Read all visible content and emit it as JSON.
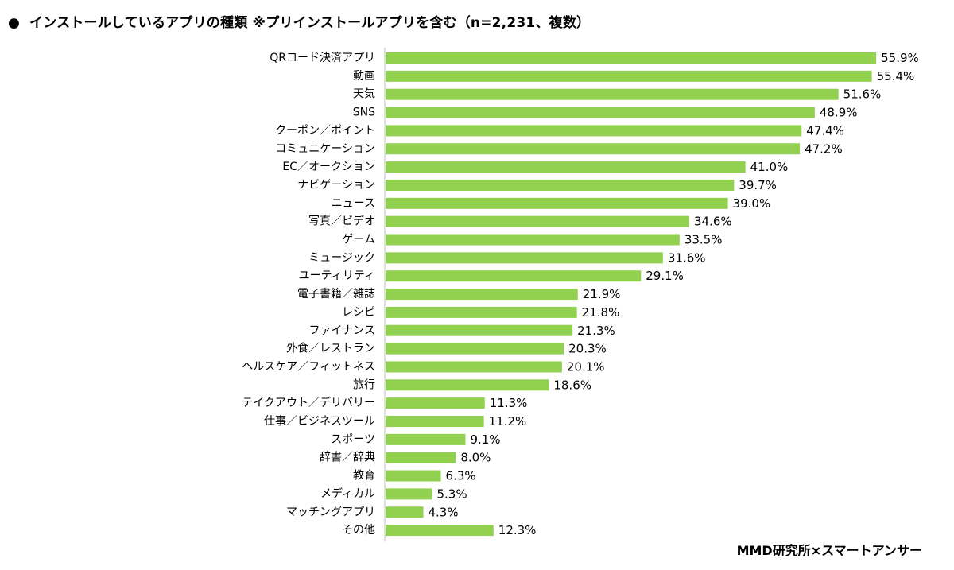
{
  "title": {
    "bullet": "●",
    "text": "インストールしているアプリの種類 ※プリインストールアプリを含む（n=2,231、複数）"
  },
  "source": "MMD研究所×スマートアンサー",
  "colors": {
    "bar": "#92d050",
    "axis": "#bfbfbf"
  },
  "chart_data": {
    "type": "bar",
    "orientation": "horizontal",
    "title": "インストールしているアプリの種類 ※プリインストールアプリを含む（n=2,231、複数）",
    "unit": "%",
    "xlim": [
      0,
      60
    ],
    "grid": false,
    "legend": "none",
    "categories": [
      "QRコード決済アプリ",
      "動画",
      "天気",
      "SNS",
      "クーポン／ポイント",
      "コミュニケーション",
      "EC／オークション",
      "ナビゲーション",
      "ニュース",
      "写真／ビデオ",
      "ゲーム",
      "ミュージック",
      "ユーティリティ",
      "電子書籍／雑誌",
      "レシピ",
      "ファイナンス",
      "外食／レストラン",
      "ヘルスケア／フィットネス",
      "旅行",
      "テイクアウト／デリバリー",
      "仕事／ビジネスツール",
      "スポーツ",
      "辞書／辞典",
      "教育",
      "メディカル",
      "マッチングアプリ",
      "その他"
    ],
    "values": [
      55.9,
      55.4,
      51.6,
      48.9,
      47.4,
      47.2,
      41.0,
      39.7,
      39.0,
      34.6,
      33.5,
      31.6,
      29.1,
      21.9,
      21.8,
      21.3,
      20.3,
      20.1,
      18.6,
      11.3,
      11.2,
      9.1,
      8.0,
      6.3,
      5.3,
      4.3,
      12.3
    ],
    "labels": [
      "55.9%",
      "55.4%",
      "51.6%",
      "48.9%",
      "47.4%",
      "47.2%",
      "41.0%",
      "39.7%",
      "39.0%",
      "34.6%",
      "33.5%",
      "31.6%",
      "29.1%",
      "21.9%",
      "21.8%",
      "21.3%",
      "20.3%",
      "20.1%",
      "18.6%",
      "11.3%",
      "11.2%",
      "9.1%",
      "8.0%",
      "6.3%",
      "5.3%",
      "4.3%",
      "12.3%"
    ]
  }
}
